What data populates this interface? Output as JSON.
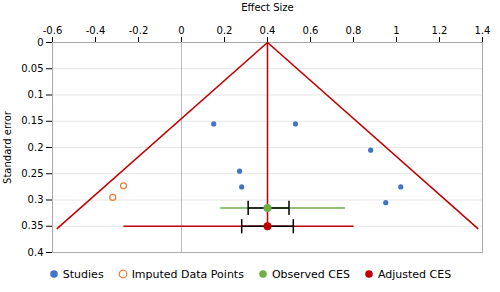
{
  "chart_data": {
    "type": "scatter",
    "xlabel": "Effect Size",
    "ylabel": "Standard error",
    "xlim": [
      -0.6,
      1.4
    ],
    "ylim": [
      0.4,
      0.0
    ],
    "xticks": [
      -0.6,
      -0.4,
      -0.2,
      0.0,
      0.2,
      0.4,
      0.6,
      0.8,
      1.0,
      1.2,
      1.4
    ],
    "yticks": [
      0,
      0.05,
      0.1,
      0.15,
      0.2,
      0.25,
      0.3,
      0.35,
      0.4
    ],
    "grid": "y",
    "legend": "bottom",
    "series": [
      {
        "name": "Studies",
        "color": "#4472C4",
        "marker": "circle",
        "x": [
          0.15,
          0.53,
          0.27,
          0.28,
          0.88,
          1.02,
          0.95
        ],
        "values": [
          0.155,
          0.155,
          0.245,
          0.275,
          0.205,
          0.275,
          0.305
        ]
      },
      {
        "name": "Imputed Data Points",
        "color": "#ED7D31",
        "marker": "open_circle",
        "x": [
          -0.32,
          -0.27
        ],
        "values": [
          0.295,
          0.273
        ]
      },
      {
        "name": "Observed CES",
        "color": "#70AD47",
        "marker": "circle",
        "x": [
          0.4
        ],
        "values": [
          0.315
        ],
        "ci_low": [
          0.18
        ],
        "ci_high": [
          0.76
        ],
        "inner_ci_low": [
          0.31
        ],
        "inner_ci_high": [
          0.5
        ]
      },
      {
        "name": "Adjusted CES",
        "color": "#C00000",
        "marker": "circle",
        "x": [
          0.4
        ],
        "values": [
          0.35
        ],
        "ci_low": [
          -0.27
        ],
        "ci_high": [
          0.8
        ],
        "inner_ci_low": [
          0.28
        ],
        "inner_ci_high": [
          0.52
        ]
      }
    ],
    "funnel": {
      "apex_x": 0.4,
      "apex_y": 0.0,
      "left_x": -0.58,
      "right_x": 1.38,
      "base_y": 0.355,
      "color": "#C00000"
    },
    "vline_x": 0.0
  }
}
